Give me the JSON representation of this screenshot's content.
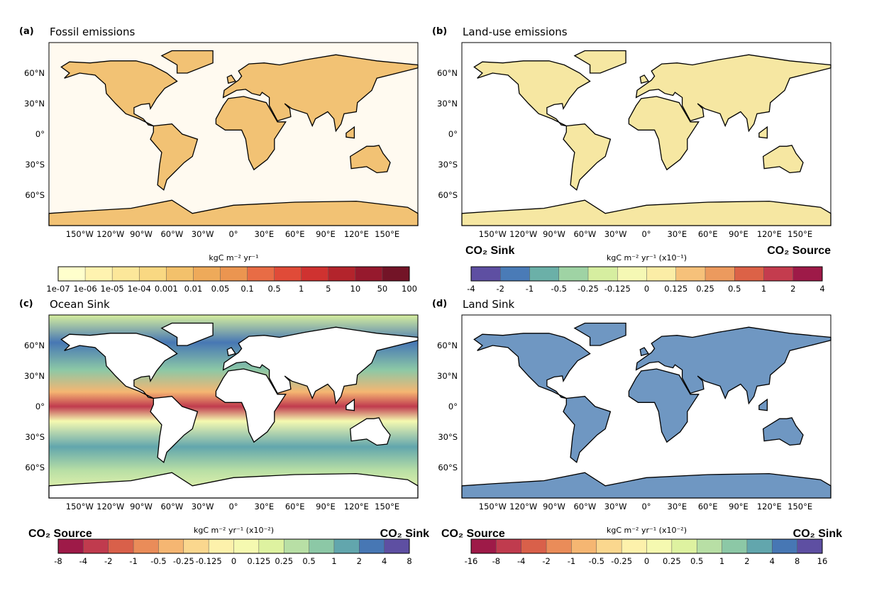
{
  "panels": [
    {
      "label": "(a)",
      "title": "Fossil emissions",
      "style": "fossil",
      "units": "kgC m⁻² yr⁻¹",
      "ticks": [
        "1e-07",
        "1e-06",
        "1e-05",
        "1e-04",
        "0.001",
        "0.01",
        "0.05",
        "0.1",
        "0.5",
        "1",
        "5",
        "10",
        "50",
        "100"
      ],
      "colors": [
        "#ffffcc",
        "#fff3b0",
        "#fce79a",
        "#f9d882",
        "#f3c16b",
        "#eeaa5a",
        "#eb9550",
        "#e86c45",
        "#e04b38",
        "#cf3230",
        "#b3242c",
        "#96192d",
        "#731427"
      ],
      "co2_left": "",
      "co2_right": ""
    },
    {
      "label": "(b)",
      "title": "Land-use emissions",
      "style": "landuse",
      "units": "kgC m⁻² yr⁻¹ (x10⁻¹)",
      "ticks": [
        "-4",
        "-2",
        "-1",
        "-0.5",
        "-0.25",
        "-0.125",
        "0",
        "0.125",
        "0.25",
        "0.5",
        "1",
        "2",
        "4"
      ],
      "colors": [
        "#5e4fa2",
        "#4a7bb7",
        "#6bb0a8",
        "#9fd3a4",
        "#d6eea0",
        "#f5f8b4",
        "#fbeda6",
        "#f6c17a",
        "#ec9a5e",
        "#dc6247",
        "#c43c4e",
        "#9e1a48"
      ],
      "co2_left": "CO₂ Sink",
      "co2_right": "CO₂ Source"
    },
    {
      "label": "(c)",
      "title": "Ocean Sink",
      "style": "ocean",
      "units": "kgC m⁻² yr⁻¹ (x10⁻²)",
      "ticks": [
        "-8",
        "-4",
        "-2",
        "-1",
        "-0.5",
        "-0.25",
        "-0.125",
        "0",
        "0.125",
        "0.25",
        "0.5",
        "1",
        "2",
        "4",
        "8"
      ],
      "colors": [
        "#9e1a48",
        "#c03b4e",
        "#d9604a",
        "#ea8c59",
        "#f5b672",
        "#fad78e",
        "#fdf1ab",
        "#f5f9b0",
        "#def2a0",
        "#b8dfa5",
        "#8cc8a6",
        "#62a6ad",
        "#4777b4",
        "#5e4fa2"
      ],
      "co2_left": "CO₂ Source",
      "co2_right": "CO₂ Sink"
    },
    {
      "label": "(d)",
      "title": "Land Sink",
      "style": "landsink",
      "units": "kgC m⁻² yr⁻¹ (x10⁻²)",
      "ticks": [
        "-16",
        "-8",
        "-4",
        "-2",
        "-1",
        "-0.5",
        "-0.25",
        "0",
        "0.25",
        "0.5",
        "1",
        "2",
        "4",
        "8",
        "16"
      ],
      "colors": [
        "#9e1a48",
        "#c03b4e",
        "#d9604a",
        "#ea8c59",
        "#f5b672",
        "#fad78e",
        "#fdf1ab",
        "#f5f9b0",
        "#def2a0",
        "#b8dfa5",
        "#8cc8a6",
        "#62a6ad",
        "#4777b4",
        "#5e4fa2"
      ],
      "co2_left": "CO₂ Source",
      "co2_right": "CO₂ Sink"
    }
  ],
  "lat_ticks": [
    "60°N",
    "30°N",
    "0°",
    "30°S",
    "60°S"
  ],
  "lon_ticks": [
    "150°W",
    "120°W",
    "90°W",
    "60°W",
    "30°W",
    "0°",
    "30°E",
    "60°E",
    "90°E",
    "120°E",
    "150°E"
  ]
}
